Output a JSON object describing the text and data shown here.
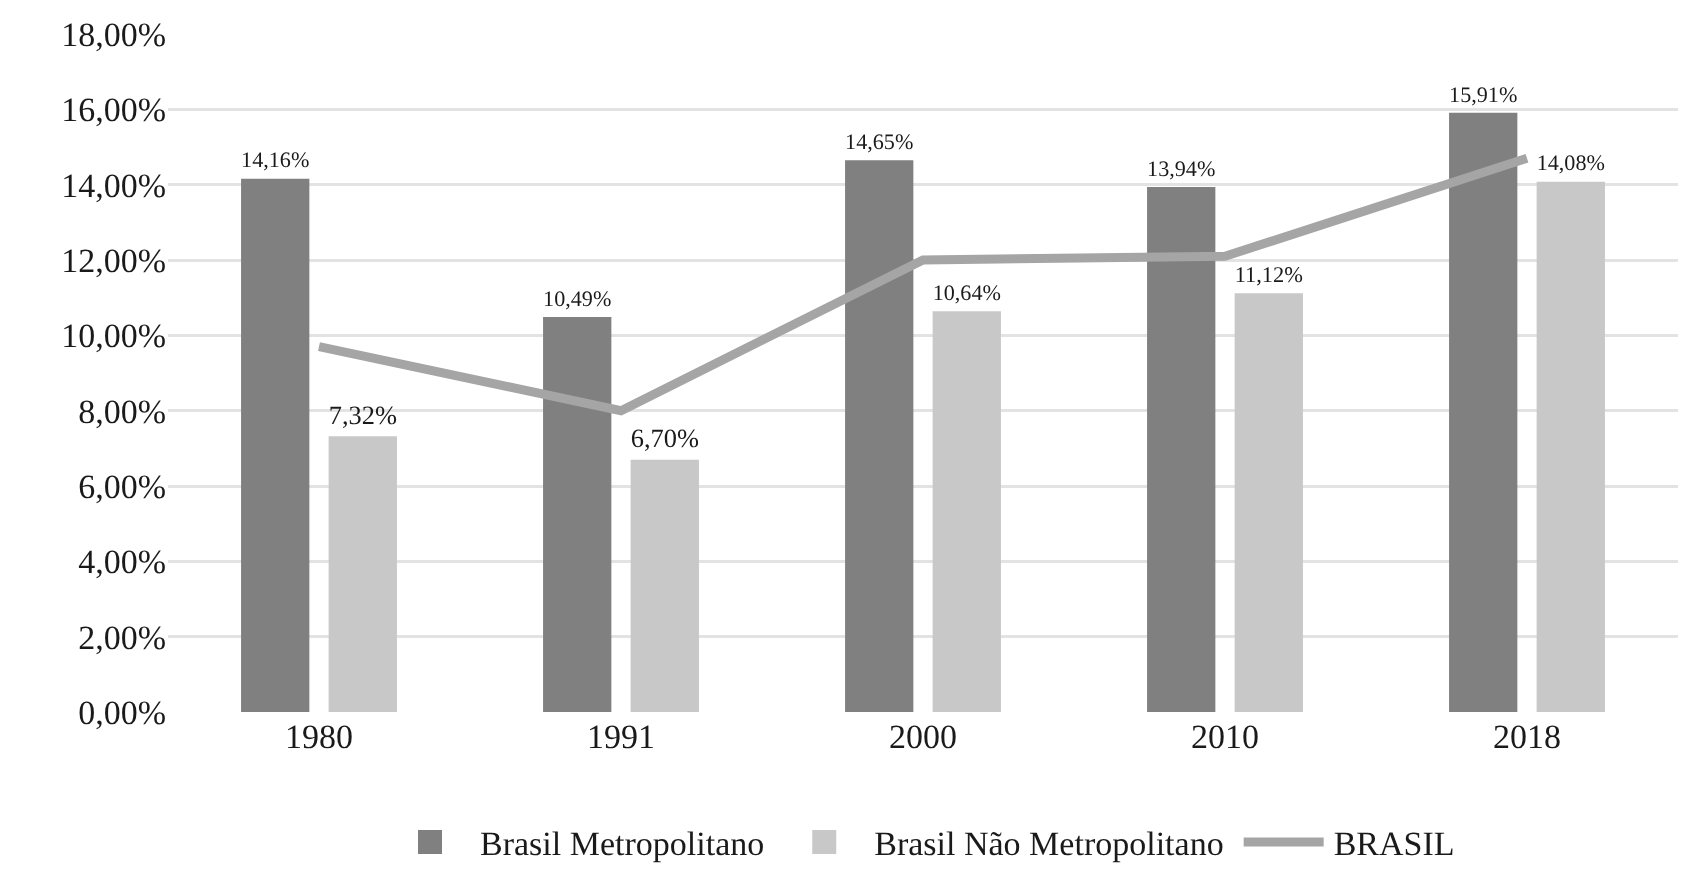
{
  "chart_data": {
    "type": "bar",
    "categories": [
      "1980",
      "1991",
      "2000",
      "2010",
      "2018"
    ],
    "series": [
      {
        "name": "Brasil Metropolitano",
        "color": "#808080",
        "values": [
          14.16,
          10.49,
          14.65,
          13.94,
          15.91
        ],
        "value_labels": [
          "14,16%",
          "10,49%",
          "14,65%",
          "13,94%",
          "15,91%"
        ]
      },
      {
        "name": "Brasil Não Metropolitano",
        "color": "#c8c8c8",
        "values": [
          7.32,
          6.7,
          10.64,
          11.12,
          14.08
        ],
        "value_labels": [
          "7,32%",
          "6,70%",
          "10,64%",
          "11,12%",
          "14,08%"
        ]
      },
      {
        "name": "BRASIL",
        "type": "line",
        "color": "#a5a5a5",
        "values": [
          9.7,
          8.0,
          12.0,
          12.1,
          14.7
        ]
      }
    ],
    "ylim": [
      0,
      18
    ],
    "yticks": [
      {
        "value": 0,
        "label": "0,00%"
      },
      {
        "value": 2,
        "label": "2,00%"
      },
      {
        "value": 4,
        "label": "4,00%"
      },
      {
        "value": 6,
        "label": "6,00%"
      },
      {
        "value": 8,
        "label": "8,00%"
      },
      {
        "value": 10,
        "label": "10,00%"
      },
      {
        "value": 12,
        "label": "12,00%"
      },
      {
        "value": 14,
        "label": "14,00%"
      },
      {
        "value": 16,
        "label": "16,00%"
      },
      {
        "value": 18,
        "label": "18,00%"
      }
    ],
    "grid": "y",
    "legend": "bottom",
    "marker": "none"
  }
}
